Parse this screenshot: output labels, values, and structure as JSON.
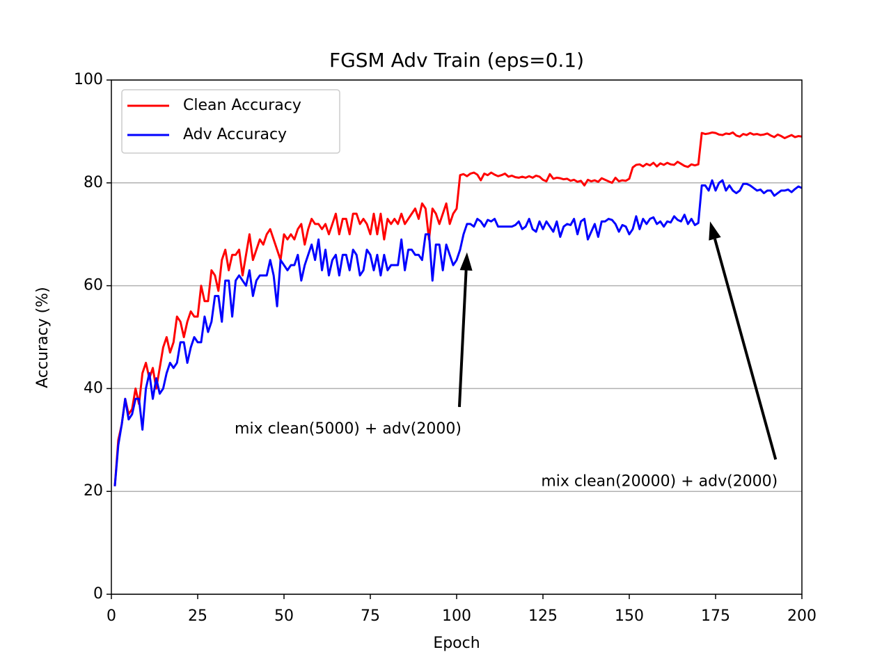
{
  "chart_data": {
    "type": "line",
    "title": "FGSM Adv Train (eps=0.1)",
    "xlabel": "Epoch",
    "ylabel": "Accuracy (%)",
    "xlim": [
      0,
      200
    ],
    "xticks": [
      0,
      25,
      50,
      75,
      100,
      125,
      150,
      175,
      200
    ],
    "ylim": [
      0,
      100
    ],
    "yticks": [
      0,
      20,
      40,
      60,
      80,
      100
    ],
    "grid": "y",
    "legend": "upper left",
    "x": [
      1,
      2,
      3,
      4,
      5,
      6,
      7,
      8,
      9,
      10,
      11,
      12,
      13,
      14,
      15,
      16,
      17,
      18,
      19,
      20,
      21,
      22,
      23,
      24,
      25,
      26,
      27,
      28,
      29,
      30,
      31,
      32,
      33,
      34,
      35,
      36,
      37,
      38,
      39,
      40,
      41,
      42,
      43,
      44,
      45,
      46,
      47,
      48,
      49,
      50,
      51,
      52,
      53,
      54,
      55,
      56,
      57,
      58,
      59,
      60,
      61,
      62,
      63,
      64,
      65,
      66,
      67,
      68,
      69,
      70,
      71,
      72,
      73,
      74,
      75,
      76,
      77,
      78,
      79,
      80,
      81,
      82,
      83,
      84,
      85,
      86,
      87,
      88,
      89,
      90,
      91,
      92,
      93,
      94,
      95,
      96,
      97,
      98,
      99,
      100,
      101,
      102,
      103,
      104,
      105,
      106,
      107,
      108,
      109,
      110,
      111,
      112,
      113,
      114,
      115,
      116,
      117,
      118,
      119,
      120,
      121,
      122,
      123,
      124,
      125,
      126,
      127,
      128,
      129,
      130,
      131,
      132,
      133,
      134,
      135,
      136,
      137,
      138,
      139,
      140,
      141,
      142,
      143,
      144,
      145,
      146,
      147,
      148,
      149,
      150,
      151,
      152,
      153,
      154,
      155,
      156,
      157,
      158,
      159,
      160,
      161,
      162,
      163,
      164,
      165,
      166,
      167,
      168,
      169,
      170,
      171,
      172,
      173,
      174,
      175,
      176,
      177,
      178,
      179,
      180,
      181,
      182,
      183,
      184,
      185,
      186,
      187,
      188,
      189,
      190,
      191,
      192,
      193,
      194,
      195,
      196,
      197,
      198,
      199,
      200
    ],
    "series": [
      {
        "name": "Clean Accuracy",
        "color": "#ff0000",
        "values": [
          21,
          30,
          33,
          38,
          35,
          36,
          40,
          37,
          43,
          45,
          42,
          44,
          40,
          44,
          48,
          50,
          47,
          49,
          54,
          53,
          50,
          53,
          55,
          54,
          54,
          60,
          57,
          57,
          63,
          62,
          59,
          65,
          67,
          63,
          66,
          66,
          67,
          62,
          66,
          70,
          65,
          67,
          69,
          68,
          70,
          71,
          69,
          67,
          65,
          70,
          69,
          70,
          69,
          71,
          72,
          68,
          71,
          73,
          72,
          72,
          71,
          72,
          70,
          72,
          74,
          70,
          73,
          73,
          70,
          74,
          74,
          72,
          73,
          72,
          70,
          74,
          70,
          74,
          69,
          73,
          72,
          73,
          72,
          74,
          72,
          73,
          74,
          75,
          73,
          76,
          75,
          69,
          75,
          74,
          72,
          74,
          76,
          72,
          74,
          75,
          81.5,
          81.7,
          81.3,
          81.8,
          82,
          81.6,
          80.5,
          81.8,
          81.5,
          82,
          81.6,
          81.3,
          81.5,
          81.8,
          81.2,
          81.4,
          81.1,
          81,
          81.2,
          81,
          81.3,
          81,
          81.4,
          81.2,
          80.6,
          80.3,
          81.7,
          80.8,
          81,
          80.9,
          80.7,
          80.8,
          80.4,
          80.6,
          80.2,
          80.4,
          79.5,
          80.6,
          80.3,
          80.5,
          80.2,
          80.9,
          80.6,
          80.3,
          80,
          81,
          80.3,
          80.5,
          80.4,
          80.8,
          83,
          83.5,
          83.6,
          83.2,
          83.7,
          83.4,
          83.9,
          83.2,
          83.8,
          83.5,
          83.9,
          83.6,
          83.5,
          84.1,
          83.7,
          83.3,
          83.1,
          83.6,
          83.4,
          83.6,
          89.7,
          89.5,
          89.6,
          89.8,
          89.7,
          89.4,
          89.3,
          89.6,
          89.5,
          89.8,
          89.2,
          89,
          89.5,
          89.3,
          89.7,
          89.4,
          89.5,
          89.3,
          89.4,
          89.6,
          89.2,
          88.9,
          89.4,
          89.1,
          88.7,
          89,
          89.3,
          88.9,
          89.1,
          89
        ]
      },
      {
        "name": "Adv Accuracy",
        "color": "#0000ff",
        "values": [
          21,
          29,
          33,
          38,
          34,
          35,
          38,
          38,
          32,
          40,
          43,
          38,
          42,
          39,
          40,
          43,
          45,
          44,
          45,
          49,
          49,
          45,
          48,
          50,
          49,
          49,
          54,
          51,
          53,
          58,
          58,
          53,
          61,
          61,
          54,
          61,
          62,
          61,
          60,
          63,
          58,
          61,
          62,
          62,
          62,
          65,
          62,
          56,
          65,
          64,
          63,
          64,
          64,
          66,
          61,
          64,
          66,
          68,
          65,
          69,
          63,
          67,
          62,
          65,
          66,
          62,
          66,
          66,
          63,
          67,
          66,
          62,
          63,
          67,
          66,
          63,
          66,
          62,
          66,
          63,
          64,
          64,
          64,
          69,
          63,
          67,
          67,
          66,
          66,
          65,
          70,
          70,
          61,
          68,
          68,
          63,
          68,
          66,
          64,
          65,
          67,
          70,
          72,
          72,
          71.5,
          73,
          72.5,
          71.5,
          72.8,
          72.5,
          73,
          71.5,
          71.5,
          71.5,
          71.5,
          71.5,
          71.8,
          72.5,
          71,
          71.5,
          73,
          71,
          70.5,
          72.5,
          71,
          72.5,
          71.5,
          70.5,
          72.5,
          69.5,
          71.5,
          72,
          71.8,
          73,
          70,
          72.5,
          73,
          69,
          70.5,
          72,
          69.5,
          72.5,
          72.5,
          73,
          72.8,
          72,
          70.5,
          71.8,
          71.5,
          70,
          71,
          73.5,
          71,
          73,
          72,
          73,
          73.3,
          72,
          72.5,
          71.5,
          72.5,
          72.3,
          73.5,
          72.8,
          72.5,
          73.8,
          72,
          73,
          71.8,
          72.2,
          79.5,
          79.5,
          78.5,
          80.5,
          78.5,
          80,
          80.5,
          78.5,
          79.5,
          78.5,
          78,
          78.5,
          79.8,
          79.8,
          79.5,
          79,
          78.5,
          78.7,
          78,
          78.5,
          78.5,
          77.5,
          78,
          78.5,
          78.5,
          78.7,
          78.2,
          78.8,
          79.3,
          79
        ]
      }
    ],
    "annotations": [
      {
        "text": "mix clean(5000) + adv(2000)",
        "xy": [
          103,
          66.5
        ],
        "xytext": [
          101.4,
          31
        ]
      },
      {
        "text": "mix clean(20000) + adv(2000)",
        "xy": [
          173.4,
          72.5
        ],
        "xytext": [
          193,
          20.8
        ]
      }
    ]
  }
}
